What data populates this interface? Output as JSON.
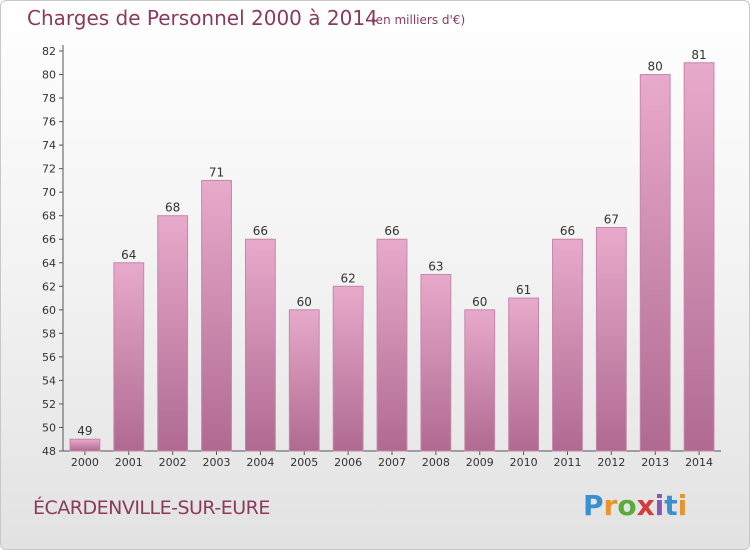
{
  "header": {
    "title": "Charges de Personnel 2000 à 2014",
    "unit": "(en milliers d'€)"
  },
  "footer": {
    "place": "ÉCARDENVILLE-SUR-EURE",
    "logo_letters": [
      "P",
      "r",
      "o",
      "x",
      "i",
      "t",
      "i"
    ],
    "logo_colors": [
      "#3a8fd0",
      "#e8942a",
      "#5aab3c",
      "#d23c3c",
      "#8a55b5",
      "#3a8fd0",
      "#e8942a"
    ]
  },
  "colors": {
    "bar_top": "#e8aacb",
    "bar_bottom": "#b06a92",
    "bar_edge": "#c587a8",
    "text": "#333333",
    "title": "#8a3a5e"
  },
  "chart_data": {
    "type": "bar",
    "categories": [
      "2000",
      "2001",
      "2002",
      "2003",
      "2004",
      "2005",
      "2006",
      "2007",
      "2008",
      "2009",
      "2010",
      "2011",
      "2012",
      "2013",
      "2014"
    ],
    "values": [
      49,
      64,
      68,
      71,
      66,
      60,
      62,
      66,
      63,
      60,
      61,
      66,
      67,
      80,
      81
    ],
    "ylim": [
      48,
      82
    ],
    "yticks": [
      48,
      50,
      52,
      54,
      56,
      58,
      60,
      62,
      64,
      66,
      68,
      70,
      72,
      74,
      76,
      78,
      80,
      82
    ],
    "grid": false,
    "legend": "none"
  }
}
